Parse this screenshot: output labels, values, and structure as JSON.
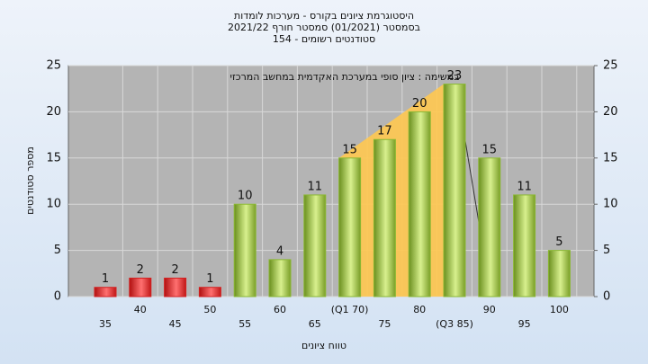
{
  "chart_data": {
    "type": "bar",
    "title": [
      "היסטוגרמת ציונים בקורס - מערכות לומדות",
      "בסמסטר  (01/2021)  סמסטר חורף 2021/22",
      "סטודנטים רשומים - 154"
    ],
    "annotation": "במשימה : ציון סופי במערכת האקדמית במחשב המרכזי",
    "xlabel": "טווח ציונים",
    "ylabel": "מספר סטודנטים",
    "categories": [
      "35",
      "40",
      "45",
      "50",
      "55",
      "60",
      "65",
      "(Q1 70)",
      "75",
      "80",
      "(Q3 85)",
      "90",
      "95",
      "100"
    ],
    "values": [
      1,
      2,
      2,
      1,
      10,
      4,
      11,
      15,
      17,
      20,
      23,
      15,
      11,
      5
    ],
    "colors": [
      "#d42020",
      "#d42020",
      "#d42020",
      "#d42020",
      "#8ab832",
      "#8ab832",
      "#8ab832",
      "#8ab832",
      "#8ab832",
      "#8ab832",
      "#8ab832",
      "#8ab832",
      "#8ab832",
      "#8ab832"
    ],
    "ylim": [
      0,
      25
    ],
    "yticks": [
      0,
      5,
      10,
      15,
      20,
      25
    ],
    "y2lim": [
      0,
      25
    ],
    "y2ticks": [
      0,
      5,
      10,
      15,
      20,
      25
    ],
    "grid": true
  }
}
